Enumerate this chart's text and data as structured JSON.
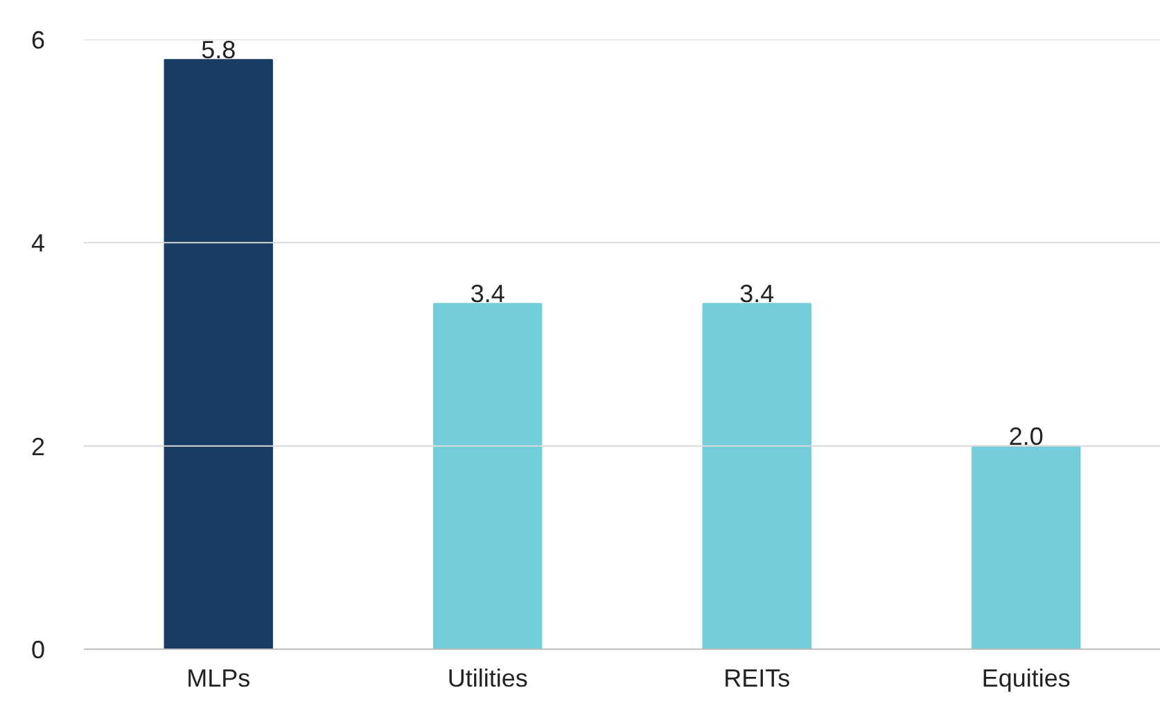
{
  "chart_data": {
    "type": "bar",
    "categories": [
      "MLPs",
      "Utilities",
      "REITs",
      "Equities"
    ],
    "values": [
      5.8,
      3.4,
      3.4,
      2.0
    ],
    "colors": [
      "#173d63",
      "#74cddb",
      "#74cddb",
      "#74cddb"
    ],
    "value_labels": [
      "5.8",
      "3.4",
      "3.4",
      "2.0"
    ],
    "ylim": [
      0,
      6
    ],
    "yticks": [
      0,
      2,
      4,
      6
    ],
    "grid": "y"
  }
}
